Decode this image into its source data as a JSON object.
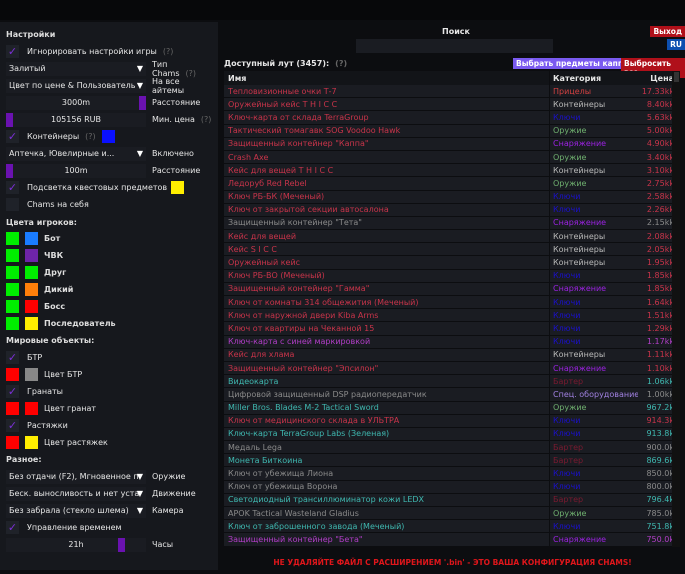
{
  "left": {
    "title": "Настройки",
    "ignore_game": "Игнорировать настройки игры",
    "q": "(?)",
    "chams_type_value": "Залитый",
    "chams_type_label": "Тип Chams",
    "color_mode_value": "Цвет по цене & Пользователь",
    "color_mode_label": "На все айтемы",
    "distance_value": "3000m",
    "distance_label": "Расстояние",
    "min_price_value": "105156 RUB",
    "min_price_label": "Мин. цена",
    "containers": "Контейнеры",
    "containers_color": "#0a10ff",
    "container_types_value": "Аптечка, Ювелирные и...",
    "container_types_label": "Включено",
    "container_dist_value": "100m",
    "container_dist_label": "Расстояние",
    "quest_highlight": "Подсветка квестовых предметов",
    "quest_color": "#ffee00",
    "chams_self": "Chams на себя",
    "players_title": "Цвета игроков:",
    "players": [
      {
        "label": "Бот",
        "c1": "#00ee00",
        "c2": "#1a7cff"
      },
      {
        "label": "ЧВК",
        "c1": "#00ee00",
        "c2": "#6e24a8"
      },
      {
        "label": "Друг",
        "c1": "#00ee00",
        "c2": "#00ee00"
      },
      {
        "label": "Дикий",
        "c1": "#00ee00",
        "c2": "#ff7f0a"
      },
      {
        "label": "Босс",
        "c1": "#00ee00",
        "c2": "#ff0000"
      },
      {
        "label": "Последователь",
        "c1": "#00ee00",
        "c2": "#ffee00"
      }
    ],
    "world_title": "Мировые объекты:",
    "btr": "БТР",
    "btr_color": "Цвет БТР",
    "grenades": "Гранаты",
    "grenades_color": "Цвет гранат",
    "tripwires": "Растяжки",
    "tripwires_color": "Цвет растяжек",
    "misc_title": "Разное:",
    "weapon_value": "Без отдачи (F2), Мгновенное п",
    "weapon_label": "Оружие",
    "movement_value": "Беск. выносливость и нет уста",
    "movement_label": "Движение",
    "camera_value": "Без забрала (стекло шлема)",
    "camera_label": "Камера",
    "time_control": "Управление временем",
    "hours_value": "21h",
    "hours_label": "Часы"
  },
  "main": {
    "search_label": "Поиск",
    "search_value": "",
    "exit": "Выход",
    "lang": "RU",
    "loot_title": "Доступный лут (3457):",
    "q": "(?)",
    "select_kappa": "Выбрать предметы каппа",
    "drop_all": "Выбросить все",
    "columns": [
      "Имя",
      "Категория",
      "Цена"
    ],
    "warning": "НЕ УДАЛЯЙТЕ ФАЙЛ С РАСШИРЕНИЕМ '.bin' - ЭТО ВАША КОНФИГУРАЦИЯ CHAMS!"
  },
  "colors": {
    "red": "#c8344a",
    "gray": "#8a8a8a",
    "teal": "#3fb8b0",
    "purple": "#b23ec8",
    "keys": "#1a10c8",
    "barter": "#7a1a30",
    "container": "#b8b8b8",
    "weapon": "#6fb06f",
    "gear": "#9a22e0",
    "scope": "#d04040",
    "spec": "#a080e0"
  },
  "rows": [
    [
      "Тепловизионные очки Т-7",
      "Прицелы",
      "17.33kk",
      "red",
      "scope"
    ],
    [
      "Оружейный кейс T H I C C",
      "Контейнеры",
      "8.40kk",
      "red",
      "container"
    ],
    [
      "Ключ-карта от склада TerraGroup",
      "Ключи",
      "5.63kk",
      "red",
      "keys"
    ],
    [
      "Тактический томагавк SOG Voodoo Hawk",
      "Оружие",
      "5.00kk",
      "red",
      "weapon"
    ],
    [
      "Защищенный контейнер \"Каппа\"",
      "Снаряжение",
      "4.90kk",
      "red",
      "gear"
    ],
    [
      "Crash Axe",
      "Оружие",
      "3.40kk",
      "red",
      "weapon"
    ],
    [
      "Кейс для вещей T H I C C",
      "Контейнеры",
      "3.10kk",
      "red",
      "container"
    ],
    [
      "Ледоруб Red Rebel",
      "Оружие",
      "2.75kk",
      "red",
      "weapon"
    ],
    [
      "Ключ РБ-БК (Меченый)",
      "Ключи",
      "2.58kk",
      "red",
      "keys"
    ],
    [
      "Ключ от закрытой секции автосалона",
      "Ключи",
      "2.26kk",
      "red",
      "keys"
    ],
    [
      "Защищенный контейнер \"Тета\"",
      "Снаряжение",
      "2.15kk",
      "gray",
      "gear"
    ],
    [
      "Кейс для вещей",
      "Контейнеры",
      "2.08kk",
      "red",
      "container"
    ],
    [
      "Кейс S I C C",
      "Контейнеры",
      "2.05kk",
      "red",
      "container"
    ],
    [
      "Оружейный кейс",
      "Контейнеры",
      "1.95kk",
      "red",
      "container"
    ],
    [
      "Ключ РБ-ВО (Меченый)",
      "Ключи",
      "1.85kk",
      "red",
      "keys"
    ],
    [
      "Защищенный контейнер \"Гамма\"",
      "Снаряжение",
      "1.85kk",
      "red",
      "gear"
    ],
    [
      "Ключ от комнаты 314 общежития (Меченый)",
      "Ключи",
      "1.64kk",
      "red",
      "keys"
    ],
    [
      "Ключ от наружной двери Kiba Arms",
      "Ключи",
      "1.51kk",
      "red",
      "keys"
    ],
    [
      "Ключ от квартиры на Чеканной 15",
      "Ключи",
      "1.29kk",
      "red",
      "keys"
    ],
    [
      "Ключ-карта с синей маркировкой",
      "Ключи",
      "1.17kk",
      "purple",
      "keys"
    ],
    [
      "Кейс для хлама",
      "Контейнеры",
      "1.11kk",
      "red",
      "container"
    ],
    [
      "Защищенный контейнер \"Эпсилон\"",
      "Снаряжение",
      "1.10kk",
      "red",
      "gear"
    ],
    [
      "Видеокарта",
      "Бартер",
      "1.06kk",
      "teal",
      "barter"
    ],
    [
      "Цифровой защищенный DSP радиопередатчик",
      "Спец. оборудование",
      "1.00kk",
      "gray",
      "spec"
    ],
    [
      "Miller Bros. Blades M-2 Tactical Sword",
      "Оружие",
      "967.2k",
      "teal",
      "weapon"
    ],
    [
      "Ключ от медицинского склада в УЛЬТРА",
      "Ключи",
      "914.3k",
      "red",
      "keys"
    ],
    [
      "Ключ-карта TerraGroup Labs (Зеленая)",
      "Ключи",
      "913.8k",
      "teal",
      "keys"
    ],
    [
      "Медаль Lega",
      "Бартер",
      "900.0k",
      "gray",
      "barter"
    ],
    [
      "Монета Биткоина",
      "Бартер",
      "869.6k",
      "teal",
      "barter"
    ],
    [
      "Ключ от убежища Лиона",
      "Ключи",
      "850.0k",
      "gray",
      "keys"
    ],
    [
      "Ключ от убежища Ворона",
      "Ключи",
      "800.0k",
      "gray",
      "keys"
    ],
    [
      "Светодиодный трансиллюминатор кожи LEDX",
      "Бартер",
      "796.4k",
      "teal",
      "barter"
    ],
    [
      "APOK Tactical Wasteland Gladius",
      "Оружие",
      "785.0k",
      "gray",
      "weapon"
    ],
    [
      "Ключ от заброшенного завода (Меченый)",
      "Ключи",
      "751.8k",
      "teal",
      "keys"
    ],
    [
      "Защищенный контейнер \"Бета\"",
      "Снаряжение",
      "750.0k",
      "purple",
      "gear"
    ]
  ]
}
